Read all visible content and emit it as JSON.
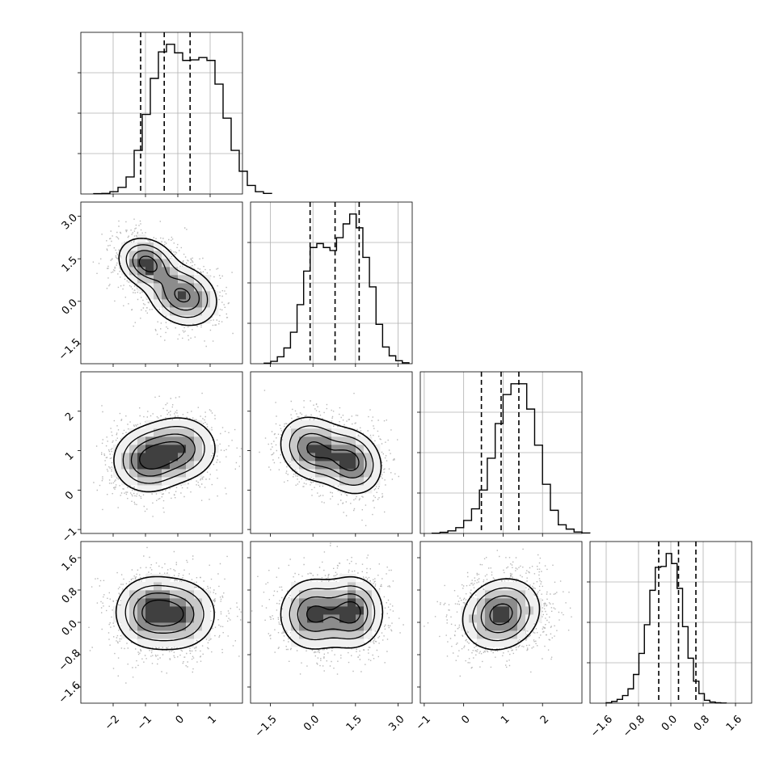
{
  "chart_data": {
    "type": "corner",
    "grid": true,
    "parameters": [
      {
        "index": 0,
        "xlim": [
          -3.0,
          2.0
        ],
        "tick_values": [
          -2,
          -1,
          0,
          1
        ],
        "tick_labels": [
          "−2",
          "−1",
          "0",
          "1"
        ],
        "quantiles": [
          -1.15,
          -0.42,
          0.38
        ],
        "hist": {
          "start": -2.6,
          "bin_width": 0.25,
          "values": [
            2,
            3,
            12,
            35,
            90,
            230,
            420,
            610,
            750,
            790,
            745,
            705,
            708,
            720,
            705,
            580,
            400,
            230,
            120,
            45,
            12,
            3
          ]
        }
      },
      {
        "index": 1,
        "xlim": [
          -2.2,
          3.5
        ],
        "tick_values": [
          -1.5,
          0.0,
          1.5,
          3.0
        ],
        "tick_labels": [
          "−1.5",
          "0.0",
          "1.5",
          "3.0"
        ],
        "quantiles": [
          -0.1,
          0.78,
          1.63
        ],
        "hist": {
          "start": -1.72,
          "bin_width": 0.232,
          "values": [
            3,
            12,
            35,
            80,
            160,
            300,
            470,
            590,
            610,
            590,
            575,
            640,
            710,
            760,
            690,
            540,
            390,
            200,
            85,
            40,
            15,
            5
          ]
        }
      },
      {
        "index": 2,
        "xlim": [
          -1.1,
          3.0
        ],
        "tick_values": [
          -1,
          0,
          1,
          2
        ],
        "tick_labels": [
          "−1",
          "0",
          "1",
          "2"
        ],
        "quantiles": [
          0.45,
          0.95,
          1.4
        ],
        "hist": {
          "start": -0.8,
          "bin_width": 0.2,
          "values": [
            2,
            8,
            18,
            40,
            90,
            170,
            300,
            520,
            760,
            960,
            1035,
            1035,
            860,
            610,
            340,
            160,
            60,
            30,
            10,
            3
          ]
        }
      },
      {
        "index": 3,
        "xlim": [
          -2.0,
          2.0
        ],
        "tick_values": [
          -1.6,
          -0.8,
          0.0,
          0.8,
          1.6
        ],
        "tick_labels": [
          "−1.6",
          "−0.8",
          "0.0",
          "0.8",
          "1.6"
        ],
        "quantiles": [
          -0.3,
          0.19,
          0.62
        ],
        "hist": {
          "start": -1.6,
          "bin_width": 0.135,
          "values": [
            5,
            18,
            40,
            80,
            150,
            300,
            520,
            820,
            1180,
            1420,
            1430,
            1565,
            1460,
            1200,
            800,
            470,
            230,
            100,
            30,
            12,
            5,
            2
          ]
        }
      }
    ],
    "pairs": [
      {
        "x_index": 0,
        "y_index": 1,
        "y_tick_values": [
          -1.5,
          0.0,
          1.5,
          3.0
        ],
        "y_tick_labels": [
          "−1.5",
          "0.0",
          "1.5",
          "3.0"
        ],
        "components": [
          {
            "mx": -0.95,
            "my": 1.35,
            "sx": 0.45,
            "sy": 0.45,
            "rho": -0.2,
            "w": 1.0
          },
          {
            "mx": 0.15,
            "my": 0.2,
            "sx": 0.55,
            "sy": 0.55,
            "rho": -0.2,
            "w": 0.95
          }
        ],
        "contour_levels": [
          0.15,
          0.35,
          0.6,
          0.85
        ]
      },
      {
        "x_index": 0,
        "y_index": 2,
        "y_tick_values": [
          -1,
          0,
          1,
          2
        ],
        "y_tick_labels": [
          "−1",
          "0",
          "1",
          "2"
        ],
        "components": [
          {
            "mx": -0.95,
            "my": 0.75,
            "sx": 0.55,
            "sy": 0.42,
            "rho": 0.0,
            "w": 1.0
          },
          {
            "mx": 0.05,
            "my": 1.05,
            "sx": 0.6,
            "sy": 0.42,
            "rho": 0.0,
            "w": 0.95
          }
        ],
        "contour_levels": [
          0.15,
          0.35,
          0.6,
          0.85
        ]
      },
      {
        "x_index": 1,
        "y_index": 2,
        "y_tick_values": [
          -1,
          0,
          1,
          2
        ],
        "y_tick_labels": [
          "−1",
          "0",
          "1",
          "2"
        ],
        "components": [
          {
            "mx": 0.0,
            "my": 1.05,
            "sx": 0.6,
            "sy": 0.42,
            "rho": -0.15,
            "w": 0.95
          },
          {
            "mx": 1.35,
            "my": 0.72,
            "sx": 0.55,
            "sy": 0.42,
            "rho": -0.15,
            "w": 1.0
          }
        ],
        "contour_levels": [
          0.15,
          0.35,
          0.6,
          0.85
        ]
      },
      {
        "x_index": 0,
        "y_index": 3,
        "y_tick_values": [
          -1.6,
          -0.8,
          0.0,
          0.8,
          1.6
        ],
        "y_tick_labels": [
          "−1.6",
          "−0.8",
          "0.0",
          "0.8",
          "1.6"
        ],
        "components": [
          {
            "mx": -0.9,
            "my": 0.25,
            "sx": 0.55,
            "sy": 0.45,
            "rho": 0.0,
            "w": 1.0
          },
          {
            "mx": 0.05,
            "my": 0.2,
            "sx": 0.6,
            "sy": 0.45,
            "rho": 0.0,
            "w": 0.95
          }
        ],
        "contour_levels": [
          0.15,
          0.35,
          0.6,
          0.85
        ]
      },
      {
        "x_index": 1,
        "y_index": 3,
        "y_tick_values": [
          -1.6,
          -0.8,
          0.0,
          0.8,
          1.6
        ],
        "y_tick_labels": [
          "−1.6",
          "−0.8",
          "0.0",
          "0.8",
          "1.6"
        ],
        "components": [
          {
            "mx": 0.0,
            "my": 0.2,
            "sx": 0.6,
            "sy": 0.45,
            "rho": 0.0,
            "w": 0.95
          },
          {
            "mx": 1.4,
            "my": 0.25,
            "sx": 0.55,
            "sy": 0.45,
            "rho": 0.0,
            "w": 1.0
          }
        ],
        "contour_levels": [
          0.15,
          0.35,
          0.6,
          0.85
        ]
      },
      {
        "x_index": 2,
        "y_index": 3,
        "y_tick_values": [
          -1.6,
          -0.8,
          0.0,
          0.8,
          1.6
        ],
        "y_tick_labels": [
          "−1.6",
          "−0.8",
          "0.0",
          "0.8",
          "1.6"
        ],
        "components": [
          {
            "mx": 0.95,
            "my": 0.2,
            "sx": 0.5,
            "sy": 0.45,
            "rho": 0.15,
            "w": 1.0
          }
        ],
        "contour_levels": [
          0.15,
          0.35,
          0.6,
          0.85
        ]
      }
    ]
  }
}
